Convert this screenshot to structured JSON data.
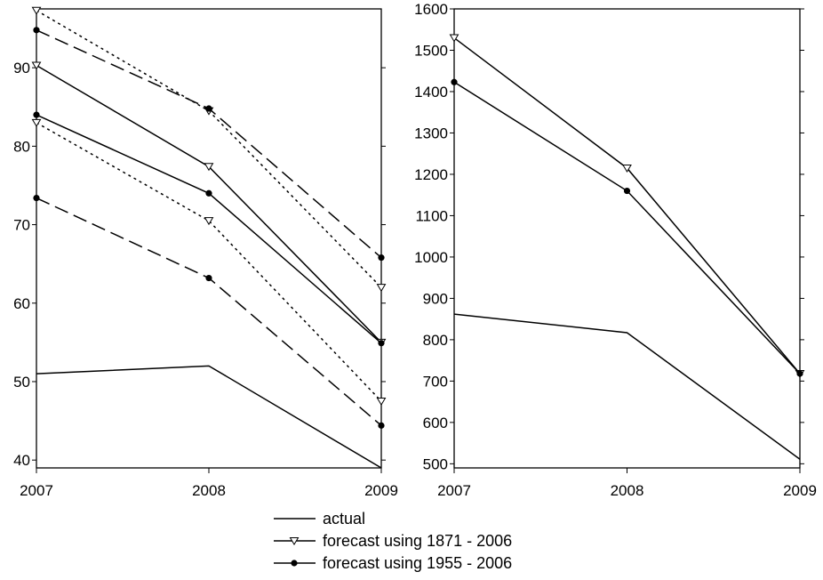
{
  "chart_data": [
    {
      "type": "line",
      "title": "",
      "xlabel": "",
      "ylabel": "",
      "x": [
        "2007",
        "2008",
        "2009"
      ],
      "ylim": [
        39,
        97.5
      ],
      "yticks": [
        40,
        50,
        60,
        70,
        80,
        90
      ],
      "grid": false,
      "series": [
        {
          "name": "actual",
          "values": [
            51.0,
            52.0,
            39.0
          ],
          "style": "solid",
          "marker": "none"
        },
        {
          "name": "",
          "values": [
            90.3,
            77.4,
            55.0
          ],
          "style": "solid",
          "marker": "triangle"
        },
        {
          "name": "",
          "values": [
            84.0,
            74.0,
            54.9
          ],
          "style": "solid",
          "marker": "dot"
        },
        {
          "name": "",
          "values": [
            97.3,
            84.5,
            62.0
          ],
          "style": "dotted",
          "marker": "triangle"
        },
        {
          "name": "",
          "values": [
            83.0,
            70.5,
            47.5
          ],
          "style": "dotted",
          "marker": "triangle"
        },
        {
          "name": "",
          "values": [
            94.8,
            84.8,
            65.8
          ],
          "style": "dashed",
          "marker": "dot"
        },
        {
          "name": "",
          "values": [
            73.4,
            63.2,
            44.4
          ],
          "style": "dashed",
          "marker": "dot"
        }
      ]
    },
    {
      "type": "line",
      "title": "",
      "xlabel": "",
      "ylabel": "",
      "x": [
        "2007",
        "2008",
        "2009"
      ],
      "ylim": [
        490,
        1600
      ],
      "yticks": [
        500,
        600,
        700,
        800,
        900,
        1000,
        1100,
        1200,
        1300,
        1400,
        1500,
        1600
      ],
      "grid": false,
      "series": [
        {
          "name": "actual",
          "values": [
            862,
            817,
            511
          ],
          "style": "solid",
          "marker": "none"
        },
        {
          "name": "forecast using 1871 - 2006",
          "values": [
            1530,
            1215,
            718
          ],
          "style": "solid",
          "marker": "triangle"
        },
        {
          "name": "forecast using 1955 - 2006",
          "values": [
            1423,
            1160,
            718
          ],
          "style": "solid",
          "marker": "dot"
        }
      ]
    }
  ],
  "legend": {
    "position": "bottom-center",
    "entries": [
      {
        "label": "actual",
        "marker": "none"
      },
      {
        "label": "forecast using 1871 - 2006",
        "marker": "triangle"
      },
      {
        "label": "forecast using 1955 - 2006",
        "marker": "dot"
      }
    ]
  }
}
